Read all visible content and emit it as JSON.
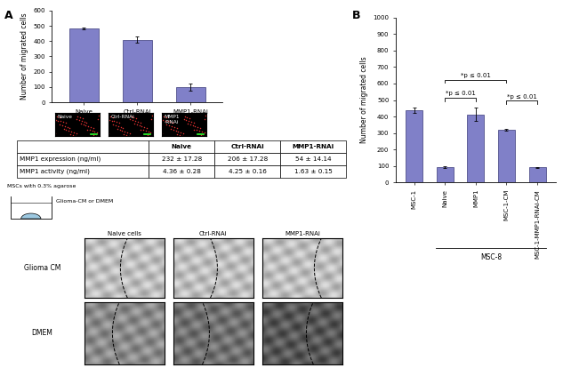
{
  "panel_labels": [
    "A",
    "B"
  ],
  "chart_data": [
    {
      "type": "bar",
      "y_label": "Number of migrated cells",
      "categories": [
        "Naive",
        "Ctrl-RNAi",
        "MMP1-RNAi"
      ],
      "values": [
        483,
        410,
        100
      ],
      "errors": [
        8,
        20,
        25
      ],
      "color": "#8080c8",
      "ylim": [
        0,
        600
      ],
      "yticks": [
        0,
        100,
        200,
        300,
        400,
        500,
        600
      ]
    },
    {
      "type": "bar",
      "y_label": "Number of migrated cells",
      "categories": [
        "MSC-1",
        "Naive",
        "MMP1",
        "MSC-1-CM",
        "MSC-1-MMP1-RNAi-CM"
      ],
      "values": [
        438,
        92,
        413,
        320,
        92
      ],
      "errors": [
        18,
        5,
        40,
        5,
        3
      ],
      "color": "#8080c8",
      "ylim": [
        0,
        1000
      ],
      "yticks": [
        0,
        100,
        200,
        300,
        400,
        500,
        600,
        700,
        800,
        900,
        1000
      ],
      "annotations": [
        {
          "text": "*p ≤ 0.01",
          "from": "Naive",
          "to": "MMP1"
        },
        {
          "text": "*p ≤ 0.01",
          "from": "Naive",
          "to": "MSC-1-CM"
        },
        {
          "text": "*p ≤ 0.01",
          "from": "MSC-1-CM",
          "to": "MSC-1-MMP1-RNAi-CM"
        }
      ],
      "group": {
        "label": "MSC-8",
        "from": "Naive",
        "to": "MSC-1-MMP1-RNAi-CM"
      }
    }
  ],
  "fluorescence_images": {
    "labels": [
      "Naive",
      "Ctrl-RNAi",
      "MMP1\n-RNAi"
    ]
  },
  "table": {
    "columns": [
      "Naive",
      "Ctrl-RNAi",
      "MMP1-RNAi"
    ],
    "rows": [
      {
        "label": "MMP1 expression (ng/ml)",
        "cells": [
          "232 ± 17.28",
          "206 ± 17.28",
          "54 ± 14.14"
        ]
      },
      {
        "label": "MMP1 activity (ng/ml)",
        "cells": [
          "4.36 ± 0.28",
          "4.25 ± 0.16",
          "1.63 ± 0.15"
        ]
      }
    ]
  },
  "assay_schematic": {
    "cells_label": "MSCs with 0.3% agarose",
    "medium_label": "Glioma-CM or DMEM"
  },
  "migration_images": {
    "columns": [
      "Naive cells",
      "Ctrl-RNAi",
      "MMP1-RNAi"
    ],
    "rows": [
      "Glioma CM",
      "DMEM"
    ]
  }
}
